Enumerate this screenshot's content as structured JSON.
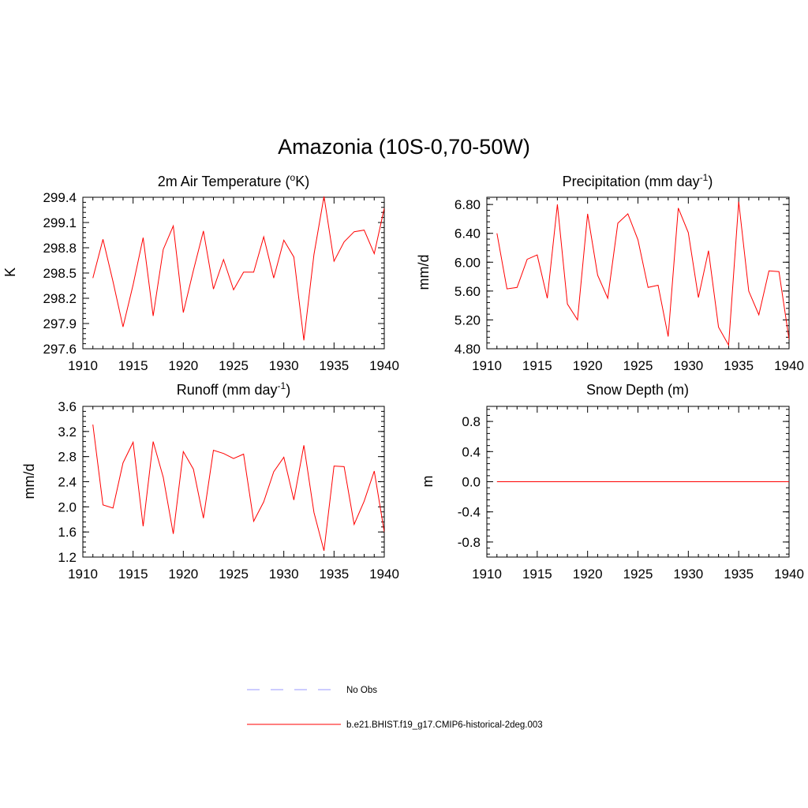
{
  "title": "Amazonia (10S-0,70-50W)",
  "chart_data": [
    {
      "type": "line",
      "title": "2m Air Temperature (",
      "title_sup": "o",
      "title_after": "K)",
      "ylabel": "K",
      "xlim": [
        1910,
        1940
      ],
      "ylim": [
        297.6,
        299.4
      ],
      "xticks": [
        "1910",
        "1915",
        "1920",
        "1925",
        "1930",
        "1935",
        "1940"
      ],
      "yticks": [
        "297.6",
        "297.9",
        "298.2",
        "298.5",
        "298.8",
        "299.1",
        "299.4"
      ],
      "x": [
        1911,
        1912,
        1913,
        1914,
        1915,
        1916,
        1917,
        1918,
        1919,
        1920,
        1921,
        1922,
        1923,
        1924,
        1925,
        1926,
        1927,
        1928,
        1929,
        1930,
        1931,
        1932,
        1933,
        1934,
        1935,
        1936,
        1937,
        1938,
        1939,
        1940
      ],
      "series": [
        {
          "color": "#ff0000",
          "values": [
            298.44,
            298.9,
            298.4,
            297.86,
            298.36,
            298.92,
            297.99,
            298.78,
            299.06,
            298.03,
            298.53,
            299.0,
            298.31,
            298.66,
            298.3,
            298.51,
            298.51,
            298.93,
            298.44,
            298.89,
            298.69,
            297.7,
            298.72,
            299.41,
            298.64,
            298.87,
            298.99,
            299.01,
            298.73,
            299.27
          ]
        }
      ]
    },
    {
      "type": "line",
      "title": "Precipitation (mm day",
      "title_sup": "-1",
      "title_after": ")",
      "ylabel": "mm/d",
      "xlim": [
        1910,
        1940
      ],
      "ylim": [
        4.8,
        6.9
      ],
      "xticks": [
        "1910",
        "1915",
        "1920",
        "1925",
        "1930",
        "1935",
        "1940"
      ],
      "yticks": [
        "4.80",
        "5.20",
        "5.60",
        "6.00",
        "6.40",
        "6.80"
      ],
      "x": [
        1911,
        1912,
        1913,
        1914,
        1915,
        1916,
        1917,
        1918,
        1919,
        1920,
        1921,
        1922,
        1923,
        1924,
        1925,
        1926,
        1927,
        1928,
        1929,
        1930,
        1931,
        1932,
        1933,
        1934,
        1935,
        1936,
        1937,
        1938,
        1939,
        1940
      ],
      "series": [
        {
          "color": "#ff0000",
          "values": [
            6.4,
            5.63,
            5.65,
            6.04,
            6.1,
            5.5,
            6.8,
            5.42,
            5.2,
            6.67,
            5.82,
            5.5,
            6.54,
            6.67,
            6.31,
            5.65,
            5.68,
            4.97,
            6.75,
            6.41,
            5.51,
            6.16,
            5.1,
            4.85,
            6.84,
            5.6,
            5.27,
            5.88,
            5.87,
            4.93
          ]
        }
      ]
    },
    {
      "type": "line",
      "title": "Runoff (mm day",
      "title_sup": "-1",
      "title_after": ")",
      "ylabel": "mm/d",
      "xlim": [
        1910,
        1940
      ],
      "ylim": [
        1.2,
        3.6
      ],
      "xticks": [
        "1910",
        "1915",
        "1920",
        "1925",
        "1930",
        "1935",
        "1940"
      ],
      "yticks": [
        "1.2",
        "1.6",
        "2.0",
        "2.4",
        "2.8",
        "3.2",
        "3.6"
      ],
      "x": [
        1911,
        1912,
        1913,
        1914,
        1915,
        1916,
        1917,
        1918,
        1919,
        1920,
        1921,
        1922,
        1923,
        1924,
        1925,
        1926,
        1927,
        1928,
        1929,
        1930,
        1931,
        1932,
        1933,
        1934,
        1935,
        1936,
        1937,
        1938,
        1939,
        1940
      ],
      "series": [
        {
          "color": "#ff0000",
          "values": [
            3.31,
            2.03,
            1.98,
            2.7,
            3.03,
            1.69,
            3.04,
            2.47,
            1.57,
            2.88,
            2.6,
            1.82,
            2.9,
            2.85,
            2.77,
            2.84,
            1.77,
            2.08,
            2.56,
            2.79,
            2.11,
            2.98,
            1.91,
            1.3,
            2.65,
            2.64,
            1.72,
            2.09,
            2.57,
            1.6
          ]
        }
      ]
    },
    {
      "type": "line",
      "title": "Snow Depth (m)",
      "title_sup": "",
      "title_after": "",
      "ylabel": "m",
      "xlim": [
        1910,
        1940
      ],
      "ylim": [
        -1.0,
        1.0
      ],
      "xticks": [
        "1910",
        "1915",
        "1920",
        "1925",
        "1930",
        "1935",
        "1940"
      ],
      "yticks": [
        "-0.8",
        "-0.4",
        "0.0",
        "0.4",
        "0.8"
      ],
      "x": [
        1911,
        1912,
        1913,
        1914,
        1915,
        1916,
        1917,
        1918,
        1919,
        1920,
        1921,
        1922,
        1923,
        1924,
        1925,
        1926,
        1927,
        1928,
        1929,
        1930,
        1931,
        1932,
        1933,
        1934,
        1935,
        1936,
        1937,
        1938,
        1939,
        1940
      ],
      "series": [
        {
          "color": "#ff0000",
          "values": [
            0,
            0,
            0,
            0,
            0,
            0,
            0,
            0,
            0,
            0,
            0,
            0,
            0,
            0,
            0,
            0,
            0,
            0,
            0,
            0,
            0,
            0,
            0,
            0,
            0,
            0,
            0,
            0,
            0,
            0
          ]
        }
      ]
    }
  ],
  "legend": {
    "items": [
      {
        "label": "No Obs",
        "color": "#9999ff",
        "dashed": true
      },
      {
        "label": "b.e21.BHIST.f19_g17.CMIP6-historical-2deg.003",
        "color": "#ff0000",
        "dashed": false
      }
    ]
  }
}
